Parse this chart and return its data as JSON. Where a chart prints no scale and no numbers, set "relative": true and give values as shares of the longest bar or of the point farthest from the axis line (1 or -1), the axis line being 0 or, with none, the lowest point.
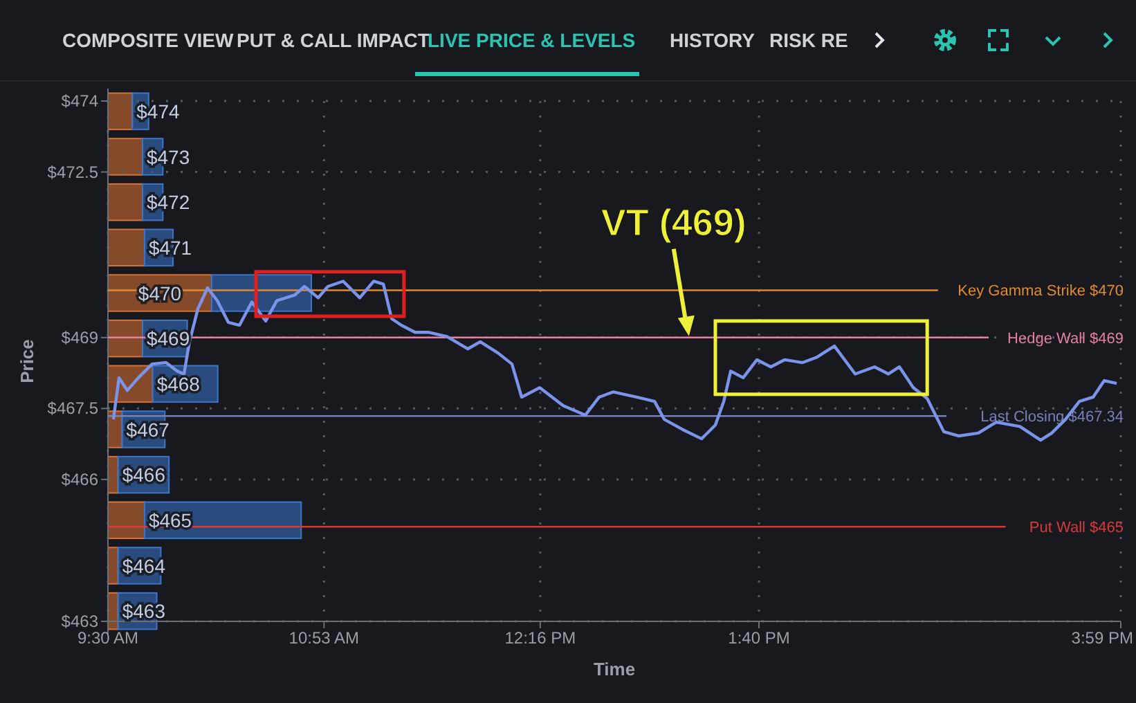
{
  "chart_data": [
    {
      "type": "other",
      "annotations": [
        "COMPOSITE VIEW",
        "PUT & CALL IMPACT",
        "LIVE PRICE & LEVELS",
        "HISTORY",
        "RISK RE"
      ]
    },
    {
      "type": "line",
      "xlabel": "Time",
      "ylabel": "Price",
      "grid": true,
      "xlim": [
        9.5,
        15.983
      ],
      "ylim": [
        463,
        474
      ],
      "xticks": [
        {
          "value": 9.5,
          "label": "9:30 AM"
        },
        {
          "value": 10.883,
          "label": "10:53 AM"
        },
        {
          "value": 12.267,
          "label": "12:16 PM"
        },
        {
          "value": 13.667,
          "label": "1:40 PM"
        },
        {
          "value": 15.983,
          "label": "3:59 PM"
        }
      ],
      "yticks": [
        {
          "value": 463,
          "label": "$463"
        },
        {
          "value": 466,
          "label": "$466"
        },
        {
          "value": 467.5,
          "label": "$467.5"
        },
        {
          "value": 469,
          "label": "$469"
        },
        {
          "value": 472.5,
          "label": "$472.5"
        },
        {
          "value": 474,
          "label": "$474"
        }
      ],
      "series": [
        {
          "color": "#7b93e8",
          "x": [
            9.535,
            9.571,
            9.624,
            9.695,
            9.783,
            9.872,
            9.943,
            9.987,
            10.022,
            10.076,
            10.138,
            10.2,
            10.271,
            10.342,
            10.421,
            10.51,
            10.581,
            10.696,
            10.758,
            10.846,
            10.908,
            11.006,
            11.112,
            11.201,
            11.263,
            11.316,
            11.378,
            11.466,
            11.555,
            11.67,
            11.803,
            11.883,
            11.998,
            12.086,
            12.148,
            12.264,
            12.414,
            12.556,
            12.644,
            12.733,
            12.884,
            12.999,
            13.061,
            13.176,
            13.3,
            13.388,
            13.442,
            13.486,
            13.566,
            13.654,
            13.743,
            13.831,
            13.946,
            14.035,
            14.15,
            14.283,
            14.407,
            14.496,
            14.566,
            14.655,
            14.744,
            14.85,
            14.947,
            15.071,
            15.186,
            15.337,
            15.47,
            15.541,
            15.629,
            15.718,
            15.806,
            15.877,
            15.957
          ],
          "values": [
            467.27,
            468.15,
            467.88,
            468.15,
            468.44,
            468.47,
            468.29,
            468.23,
            468.91,
            469.61,
            470.05,
            469.78,
            469.32,
            469.26,
            469.75,
            469.35,
            469.78,
            469.9,
            470.08,
            469.84,
            470.08,
            470.19,
            469.84,
            470.19,
            470.13,
            469.4,
            469.26,
            469.11,
            469.11,
            469.02,
            468.76,
            468.91,
            468.67,
            468.44,
            467.74,
            467.94,
            467.56,
            467.36,
            467.74,
            467.85,
            467.74,
            467.65,
            467.27,
            467.06,
            466.86,
            467.15,
            467.65,
            468.29,
            468.15,
            468.53,
            468.38,
            468.53,
            468.47,
            468.58,
            468.82,
            468.23,
            468.38,
            468.23,
            468.38,
            467.94,
            467.71,
            467.01,
            466.92,
            466.98,
            467.21,
            467.12,
            466.83,
            466.98,
            467.27,
            467.65,
            467.74,
            468.09,
            468.03
          ]
        }
      ],
      "ref_lines": [
        {
          "axis": "y",
          "value": 470,
          "label": "Key Gamma Strike $470",
          "color": "#e08a2e"
        },
        {
          "axis": "y",
          "value": 469,
          "label": "Hedge Wall $469",
          "color": "#e87ea1"
        },
        {
          "axis": "y",
          "value": 467.34,
          "label": "Last Closing $467.34",
          "color": "#7880b8"
        },
        {
          "axis": "y",
          "value": 465,
          "label": "Put Wall $465",
          "color": "#d63a3a"
        }
      ],
      "annotations": [
        {
          "text": "VT (469)",
          "x": 13.21,
          "y": 469
        }
      ]
    },
    {
      "type": "bar",
      "orientation": "horizontal",
      "stacked": true,
      "relative": true,
      "categories": [
        "$474",
        "$473",
        "$472",
        "$471",
        "$470",
        "$469",
        "$468",
        "$467",
        "$466",
        "$465",
        "$464",
        "$463"
      ],
      "series": [
        {
          "color": "#a0562c",
          "values": [
            0.12,
            0.17,
            0.17,
            0.18,
            0.51,
            0.17,
            0.22,
            0.07,
            0.05,
            0.18,
            0.05,
            0.05
          ]
        },
        {
          "color": "#2e5896",
          "values": [
            0.08,
            0.1,
            0.1,
            0.14,
            0.49,
            0.22,
            0.32,
            0.21,
            0.25,
            0.77,
            0.21,
            0.19
          ]
        }
      ]
    }
  ]
}
